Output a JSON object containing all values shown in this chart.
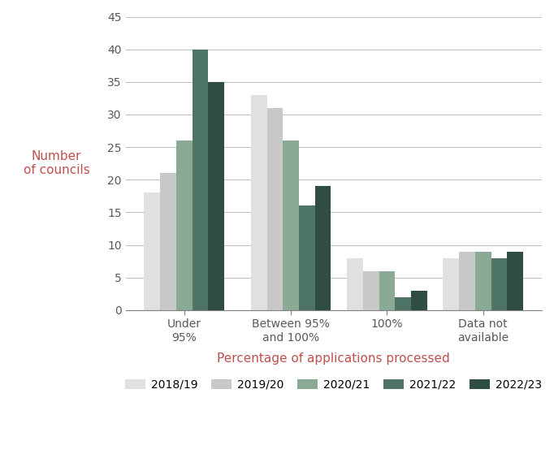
{
  "categories": [
    "Under\n95%",
    "Between 95%\nand 100%",
    "100%",
    "Data not\navailable"
  ],
  "series": {
    "2018/19": [
      18,
      33,
      8,
      8
    ],
    "2019/20": [
      21,
      31,
      6,
      9
    ],
    "2020/21": [
      26,
      26,
      6,
      9
    ],
    "2021/22": [
      40,
      16,
      2,
      8
    ],
    "2022/23": [
      35,
      19,
      3,
      9
    ]
  },
  "colors": {
    "2018/19": "#e0e0e0",
    "2019/20": "#c8c8c8",
    "2020/21": "#8aaa96",
    "2021/22": "#4d7464",
    "2022/23": "#2f4d40"
  },
  "ylabel": "Number\nof councils",
  "xlabel": "Percentage of applications processed",
  "ylim": [
    0,
    45
  ],
  "yticks": [
    0,
    5,
    10,
    15,
    20,
    25,
    30,
    35,
    40,
    45
  ],
  "legend_order": [
    "2018/19",
    "2019/20",
    "2020/21",
    "2021/22",
    "2022/23"
  ],
  "bar_width": 0.15,
  "ylabel_color": "#c0504d",
  "xlabel_color": "#c0504d",
  "tick_color": "#595959",
  "grid_color": "#c0c0c0"
}
